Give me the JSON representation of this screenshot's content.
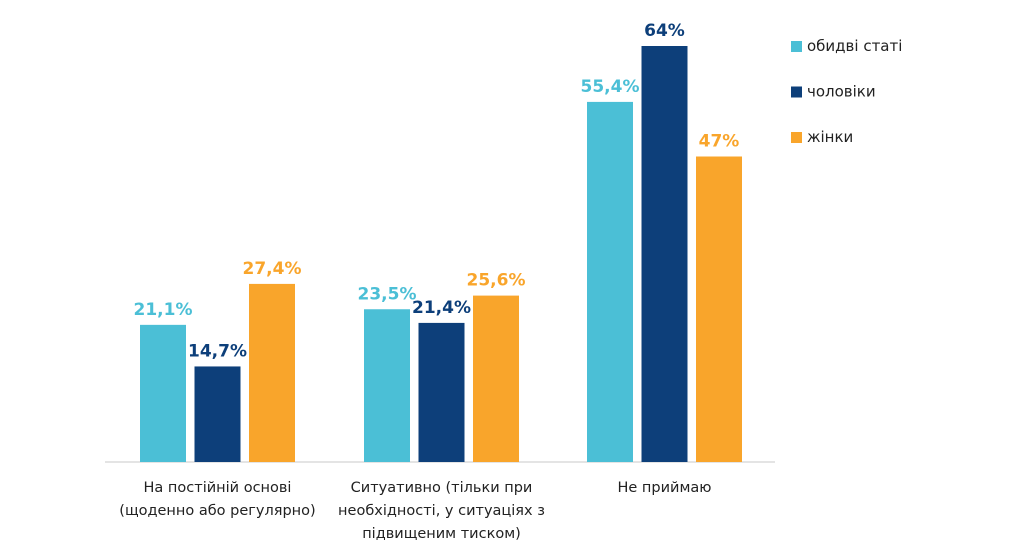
{
  "chart_data": {
    "type": "bar",
    "categories": [
      [
        "На постійній основі",
        "(щоденно або регулярно)"
      ],
      [
        "Ситуативно (тільки при",
        "необхідності, у ситуаціях з",
        "підвищеним тиском)"
      ],
      [
        "Не приймаю"
      ]
    ],
    "series": [
      {
        "name": "обидві статі",
        "color": "#4BBFD6",
        "values": [
          21.1,
          23.5,
          55.4
        ],
        "labels": [
          "21,1%",
          "23,5%",
          "55,4%"
        ]
      },
      {
        "name": "чоловіки",
        "color": "#0D3F7A",
        "values": [
          14.7,
          21.4,
          64
        ],
        "labels": [
          "14,7%",
          "21,4%",
          "64%"
        ]
      },
      {
        "name": "жінки",
        "color": "#F9A52B",
        "values": [
          27.4,
          25.6,
          47
        ],
        "labels": [
          "27,4%",
          "25,6%",
          "47%"
        ]
      }
    ],
    "ylim": [
      0,
      64
    ],
    "grid": false,
    "legend": "right",
    "title": "",
    "xlabel": "",
    "ylabel": ""
  }
}
